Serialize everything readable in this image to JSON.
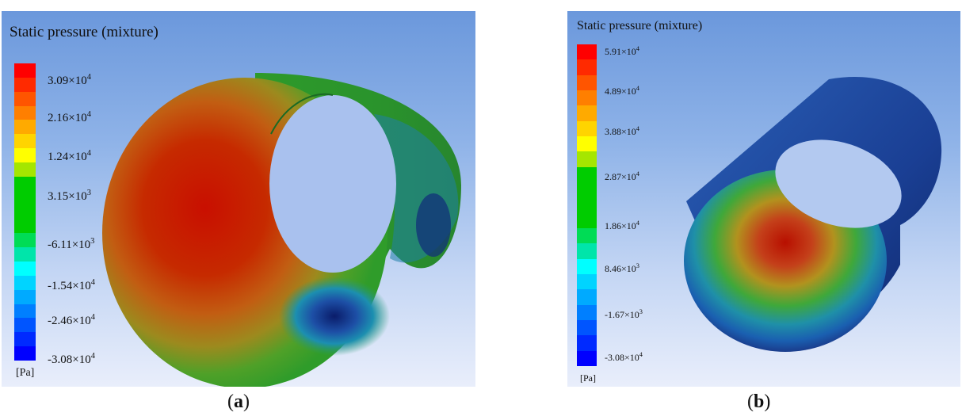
{
  "panels": [
    {
      "title": "Static pressure (mixture)",
      "ticks": [
        {
          "base": "3.09×10",
          "exp": "4"
        },
        {
          "base": "2.16×10",
          "exp": "4"
        },
        {
          "base": "1.24×10",
          "exp": "4"
        },
        {
          "base": "3.15×10",
          "exp": "3"
        },
        {
          "base": "-6.11×10",
          "exp": "3"
        },
        {
          "base": "-1.54×10",
          "exp": "4"
        },
        {
          "base": "-2.46×10",
          "exp": "4"
        },
        {
          "base": "-3.08×10",
          "exp": "4"
        }
      ],
      "unit": "[Pa]",
      "caption": {
        "open": "(",
        "letter": "a",
        "close": ")"
      }
    },
    {
      "title": "Static pressure (mixture)",
      "ticks": [
        {
          "base": "5.91×10",
          "exp": "4"
        },
        {
          "base": "4.89×10",
          "exp": "4"
        },
        {
          "base": "3.88×10",
          "exp": "4"
        },
        {
          "base": "2.87×10",
          "exp": "4"
        },
        {
          "base": "1.86×10",
          "exp": "4"
        },
        {
          "base": "8.46×10",
          "exp": "3"
        },
        {
          "base": "-1.67×10",
          "exp": "3"
        },
        {
          "base": "-3.08×10",
          "exp": "4"
        }
      ],
      "unit": "[Pa]",
      "caption": {
        "open": "(",
        "letter": "b",
        "close": ")"
      }
    }
  ],
  "colormap": [
    "#ff0000",
    "#ff2a00",
    "#ff5500",
    "#ff7f00",
    "#ffaa00",
    "#ffd400",
    "#ffff00",
    "#a5e600",
    "#00cc00",
    "#00cc00",
    "#00cc00",
    "#00cc00",
    "#00dc55",
    "#00e5aa",
    "#00ffff",
    "#00d4ff",
    "#00aaff",
    "#007fff",
    "#0055ff",
    "#002aff",
    "#0000ff"
  ]
}
